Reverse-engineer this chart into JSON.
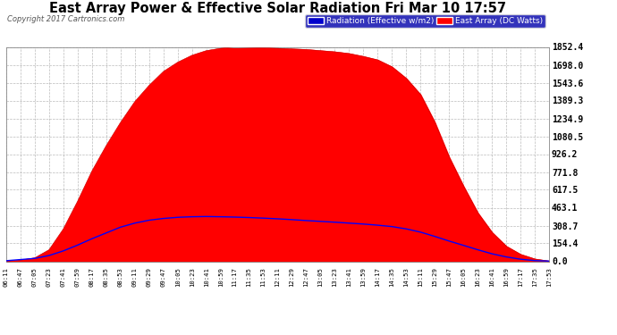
{
  "title": "East Array Power & Effective Solar Radiation Fri Mar 10 17:57",
  "copyright": "Copyright 2017 Cartronics.com",
  "legend_labels": [
    "Radiation (Effective w/m2)",
    "East Array (DC Watts)"
  ],
  "legend_colors": [
    "#0000ff",
    "#ff0000"
  ],
  "yticks": [
    0.0,
    154.4,
    308.7,
    463.1,
    617.5,
    771.8,
    926.2,
    1080.5,
    1234.9,
    1389.3,
    1543.6,
    1698.0,
    1852.4
  ],
  "ymax": 1852.4,
  "ymin": 0.0,
  "background_color": "#ffffff",
  "outer_background": "#ffffff",
  "title_color": "#000000",
  "grid_color": "#aaaaaa",
  "xtick_labels": [
    "06:11",
    "06:47",
    "07:05",
    "07:23",
    "07:41",
    "07:59",
    "08:17",
    "08:35",
    "08:53",
    "09:11",
    "09:29",
    "09:47",
    "10:05",
    "10:23",
    "10:41",
    "10:59",
    "11:17",
    "11:35",
    "11:53",
    "12:11",
    "12:29",
    "12:47",
    "13:05",
    "13:23",
    "13:41",
    "13:59",
    "14:17",
    "14:35",
    "14:53",
    "15:11",
    "15:29",
    "15:47",
    "16:05",
    "16:23",
    "16:41",
    "16:59",
    "17:17",
    "17:35",
    "17:53"
  ],
  "east_array_values": [
    2,
    10,
    30,
    100,
    280,
    520,
    780,
    1000,
    1200,
    1380,
    1520,
    1640,
    1720,
    1780,
    1820,
    1840,
    1852,
    1848,
    1845,
    1840,
    1835,
    1830,
    1820,
    1810,
    1795,
    1770,
    1740,
    1680,
    1580,
    1440,
    1200,
    900,
    650,
    420,
    250,
    130,
    60,
    20,
    2
  ],
  "radiation_values": [
    5,
    15,
    25,
    50,
    90,
    140,
    195,
    245,
    295,
    330,
    355,
    370,
    380,
    385,
    387,
    385,
    382,
    378,
    373,
    367,
    360,
    352,
    345,
    338,
    330,
    322,
    312,
    300,
    280,
    252,
    215,
    175,
    138,
    100,
    65,
    38,
    18,
    6,
    2
  ]
}
